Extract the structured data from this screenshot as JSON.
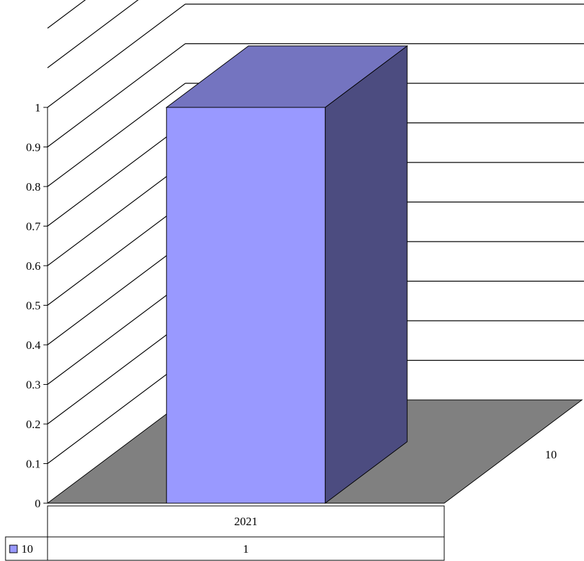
{
  "chart_data": {
    "type": "bar",
    "style": "3d-column",
    "categories": [
      "2021"
    ],
    "series": [
      {
        "name": "10",
        "values": [
          1
        ]
      }
    ],
    "depth_axis_label": "10",
    "ylim": [
      0,
      1
    ],
    "y_ticks": [
      "0",
      "0.1",
      "0.2",
      "0.3",
      "0.4",
      "0.5",
      "0.6",
      "0.7",
      "0.8",
      "0.9",
      "1"
    ],
    "grid": true,
    "legend_placement": "data-table",
    "data_table": {
      "header": [
        "2021"
      ],
      "rows": [
        {
          "legend": "10",
          "cells": [
            "1"
          ]
        }
      ]
    },
    "colors": {
      "bar_front": "#9999ff",
      "bar_top": "#7474c0",
      "bar_side": "#4c4c80",
      "floor": "#808080",
      "legend_swatch": "#9999ff"
    }
  }
}
